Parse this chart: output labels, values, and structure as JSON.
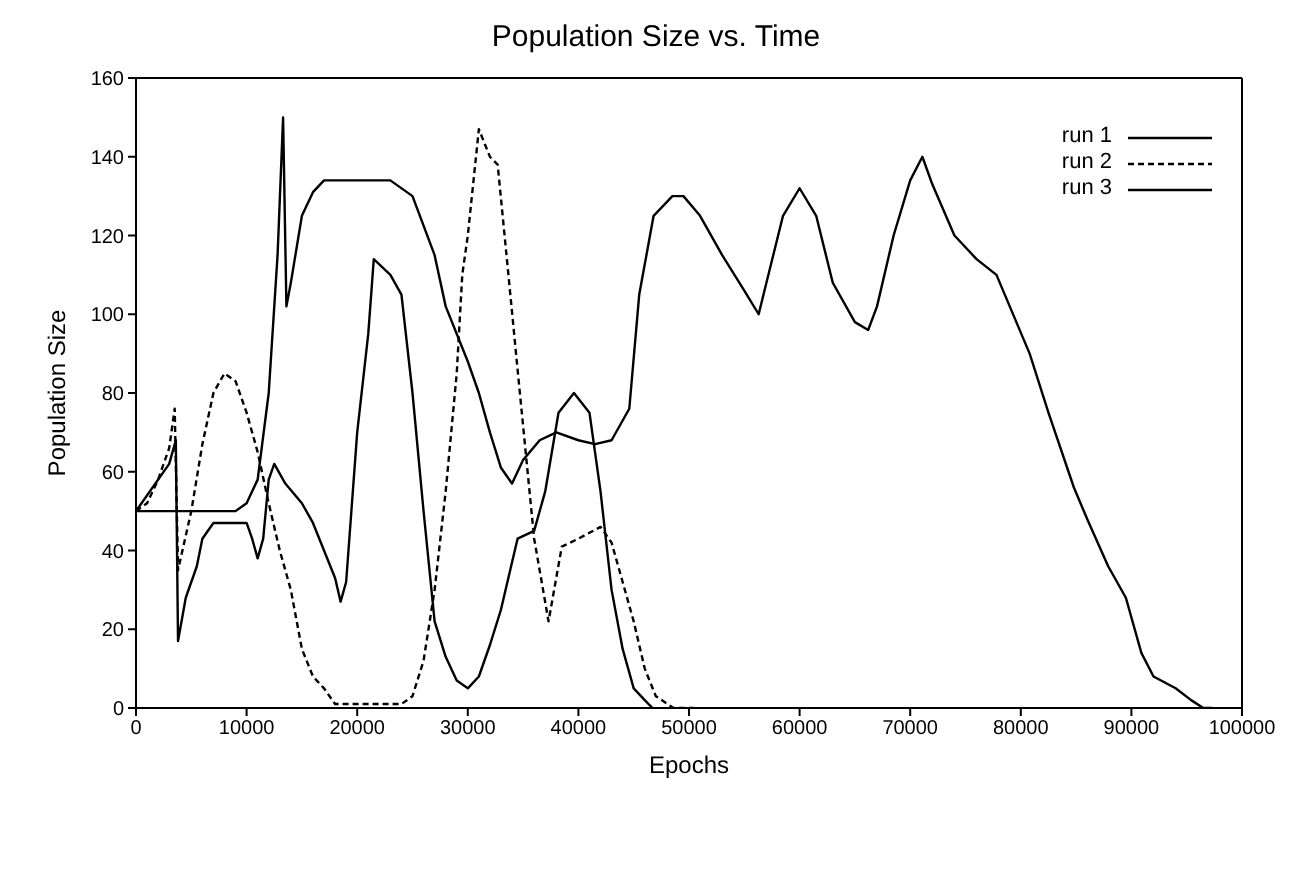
{
  "chart_data": {
    "type": "line",
    "title": "Population Size vs. Time",
    "xlabel": "Epochs",
    "ylabel": "Population Size",
    "xlim": [
      0,
      100000
    ],
    "xticks": [
      0,
      10000,
      20000,
      30000,
      40000,
      50000,
      60000,
      70000,
      80000,
      90000,
      100000
    ],
    "ylim": [
      0,
      160
    ],
    "yticks": [
      0,
      20,
      40,
      60,
      80,
      100,
      120,
      140,
      160
    ],
    "grid": false,
    "legend": "top right",
    "marker": "none",
    "series": [
      {
        "name": "run 1",
        "color": "#000000",
        "line_style": "solid",
        "x": [
          0,
          9000,
          10000,
          11000,
          12000,
          12800,
          13300,
          13600,
          14000,
          15000,
          16000,
          17000,
          23000,
          25000,
          27000,
          28000,
          30000,
          31000,
          32000,
          33000,
          34000,
          35000,
          36500,
          38000,
          40000,
          41500,
          43000,
          44600,
          45500,
          46800,
          48500,
          49500,
          51000,
          53000,
          55000,
          56300,
          57000,
          58500,
          60000,
          61500,
          63000,
          65000,
          66200,
          67000,
          68500,
          70000,
          71100,
          72000,
          74000,
          76000,
          77800,
          79000,
          80800,
          82500,
          84800,
          86000,
          87900,
          89500,
          90900,
          92000,
          94000,
          95400,
          96500,
          97300
        ],
        "values": [
          50,
          50,
          52,
          58,
          80,
          115,
          150,
          102,
          108,
          125,
          131,
          134,
          134,
          130,
          115,
          102,
          88,
          80,
          70,
          61,
          57,
          63,
          68,
          70,
          68,
          67,
          68,
          76,
          105,
          125,
          130,
          130,
          125,
          115,
          106,
          100,
          108,
          125,
          132,
          125,
          108,
          98,
          96,
          102,
          120,
          134,
          140,
          133,
          120,
          114,
          110,
          102,
          90,
          75,
          56,
          48,
          36,
          28,
          14,
          8,
          5,
          2,
          0,
          0
        ]
      },
      {
        "name": "run 2",
        "color": "#000000",
        "line_style": "dashed",
        "x": [
          0,
          1000,
          2000,
          3000,
          3500,
          3800,
          5000,
          6000,
          7000,
          8000,
          9000,
          10000,
          11000,
          12000,
          13000,
          14000,
          15000,
          16000,
          17000,
          18000,
          20000,
          24000,
          25000,
          26000,
          27000,
          28000,
          29000,
          29500,
          30000,
          31000,
          32000,
          32700,
          33500,
          34500,
          36000,
          37300,
          38500,
          40000,
          42000,
          43000,
          44000,
          45000,
          46000,
          47000,
          48600,
          50500
        ],
        "values": [
          50,
          52,
          58,
          66,
          76,
          35,
          50,
          67,
          80,
          85,
          83,
          75,
          65,
          52,
          40,
          30,
          15,
          8,
          5,
          1,
          1,
          1,
          3,
          12,
          30,
          55,
          85,
          110,
          120,
          147,
          140,
          138,
          115,
          86,
          43,
          22,
          41,
          43,
          46,
          42,
          32,
          22,
          10,
          3,
          0,
          0
        ]
      },
      {
        "name": "run 3",
        "color": "#000000",
        "line_style": "solid",
        "x": [
          0,
          3000,
          3600,
          3800,
          4500,
          5500,
          6000,
          7000,
          10000,
          10500,
          11000,
          11500,
          12000,
          12500,
          13500,
          15000,
          16000,
          17000,
          18000,
          18500,
          19000,
          20000,
          21000,
          21500,
          23000,
          24000,
          25000,
          26000,
          27000,
          28000,
          29000,
          30000,
          31000,
          32000,
          33000,
          34500,
          36000,
          37000,
          38200,
          39600,
          41000,
          42000,
          43000,
          44000,
          45000,
          46000,
          46700
        ],
        "values": [
          50,
          62,
          68,
          17,
          28,
          36,
          43,
          47,
          47,
          43,
          38,
          43,
          58,
          62,
          57,
          52,
          47,
          40,
          33,
          27,
          32,
          70,
          95,
          114,
          110,
          105,
          80,
          50,
          22,
          13,
          7,
          5,
          8,
          16,
          25,
          43,
          45,
          55,
          75,
          80,
          75,
          55,
          30,
          15,
          5,
          2,
          0
        ]
      }
    ]
  }
}
